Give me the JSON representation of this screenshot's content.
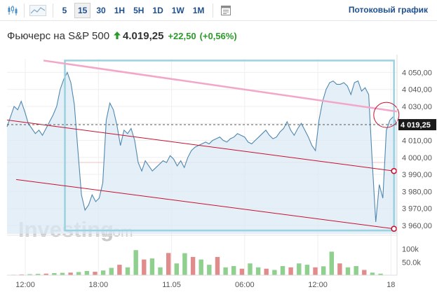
{
  "toolbar": {
    "chart_type_icon": "candlestick-icon",
    "area_icon": "area-chart-icon",
    "settings_icon": "chart-settings-icon",
    "timeframes": [
      "5",
      "15",
      "30",
      "1H",
      "5H",
      "1D",
      "1W",
      "1M"
    ],
    "active_timeframe": "15",
    "stream_label": "Потоковый график"
  },
  "header": {
    "name": "Фьючерс на S&P 500",
    "price": "4.019,25",
    "change": "+22,50",
    "change_pct": "(+0,56%)",
    "up_arrow_icon": "up-arrow-icon"
  },
  "watermark": {
    "brand_text": "Investing",
    "domain_text": ".com"
  },
  "colors": {
    "area_line": "#4f88ae",
    "area_fill": "#dce9f4",
    "positive": "#2a9b2a",
    "price_badge": "#1a1a1a",
    "pink_trendline": "#f2a6c8",
    "red_trendline": "#c8102e",
    "cyan_box": "#9ad2e0",
    "volume_up": "#8fd08f",
    "volume_down": "#e08c8c"
  },
  "chart_data": {
    "type": "area",
    "title": "",
    "xlabel": "",
    "ylabel": "",
    "ylim": [
      3955,
      4058
    ],
    "y_ticks": [
      3960,
      3970,
      3980,
      3990,
      4000,
      4010,
      4020,
      4030,
      4040,
      4050
    ],
    "y_tick_labels": [
      "3 960,00",
      "3 970,00",
      "3 980,00",
      "3 990,00",
      "4 000,00",
      "4 010,00",
      "4 020,00",
      "4 030,00",
      "4 040,00",
      "4 050,00"
    ],
    "x_ticks": [
      {
        "x": 6,
        "label": "12:00"
      },
      {
        "x": 30,
        "label": "18:00"
      },
      {
        "x": 54,
        "label": "11.05"
      },
      {
        "x": 78,
        "label": "06:00"
      },
      {
        "x": 102,
        "label": "12:00"
      },
      {
        "x": 126,
        "label": "18"
      }
    ],
    "xlim": [
      0,
      128
    ],
    "current_price": 4019.25,
    "current_price_label": "4 019,25",
    "series": [
      {
        "values": [
          4018,
          4024,
          4030,
          4028,
          4033,
          4027,
          4020,
          4017,
          4014,
          4016,
          4013,
          4017,
          4021,
          4025,
          4030,
          4040,
          4046,
          4050,
          4044,
          4031,
          4004,
          3978,
          3969,
          3972,
          3978,
          3974,
          3976,
          3985,
          4022,
          4032,
          4028,
          4019,
          4007,
          4016,
          4014,
          4017,
          4010,
          3997,
          3992,
          3998,
          3995,
          3992,
          3994,
          3996,
          3998,
          3997,
          4001,
          3999,
          3995,
          3998,
          3994,
          4000,
          4004,
          4006,
          4007,
          4008,
          4009,
          4008,
          4010,
          4011,
          4012,
          4010,
          4009,
          4011,
          4012,
          4014,
          4013,
          4012,
          4009,
          4008,
          4010,
          4012,
          4014,
          4016,
          4013,
          4011,
          4012,
          4015,
          4017,
          4021,
          4016,
          4013,
          4017,
          4020,
          4016,
          4012,
          4007,
          4004,
          4022,
          4033,
          4040,
          4044,
          4045,
          4043,
          4043,
          4044,
          4042,
          4037,
          4044,
          4045,
          4039,
          4041,
          4037,
          3998,
          3962,
          3984,
          3976,
          4016,
          4022,
          4024,
          4019
        ]
      }
    ],
    "volume": {
      "values": [
        2,
        3,
        4,
        5,
        6,
        8,
        9,
        10,
        12,
        16,
        13,
        18,
        28,
        40,
        30,
        96,
        60,
        64,
        30,
        85,
        45,
        84,
        70,
        60,
        40,
        70,
        30,
        35,
        25,
        45,
        30,
        25,
        20,
        35,
        30,
        45,
        40,
        30,
        34,
        90,
        45,
        30,
        35,
        20,
        10,
        6
      ],
      "labels": [
        "100k",
        "50.0k"
      ],
      "label_values": [
        100,
        50
      ],
      "vmax": 150
    },
    "drawings": {
      "pink_line": {
        "start": {
          "x": 12,
          "y": 4057
        },
        "end": {
          "x": 128,
          "y": 4027
        }
      },
      "red_line_upper": {
        "start": {
          "x": 0,
          "y": 4022
        },
        "end": {
          "x": 127,
          "y": 3992
        }
      },
      "red_line_lower": {
        "start": {
          "x": 3,
          "y": 3987
        },
        "end": {
          "x": 127,
          "y": 3958
        }
      },
      "cyan_box": {
        "x0": 19,
        "x1": 127,
        "y0": 3957,
        "y1": 4057
      },
      "red_circle": {
        "x": 124.5,
        "y": 4025
      }
    }
  }
}
